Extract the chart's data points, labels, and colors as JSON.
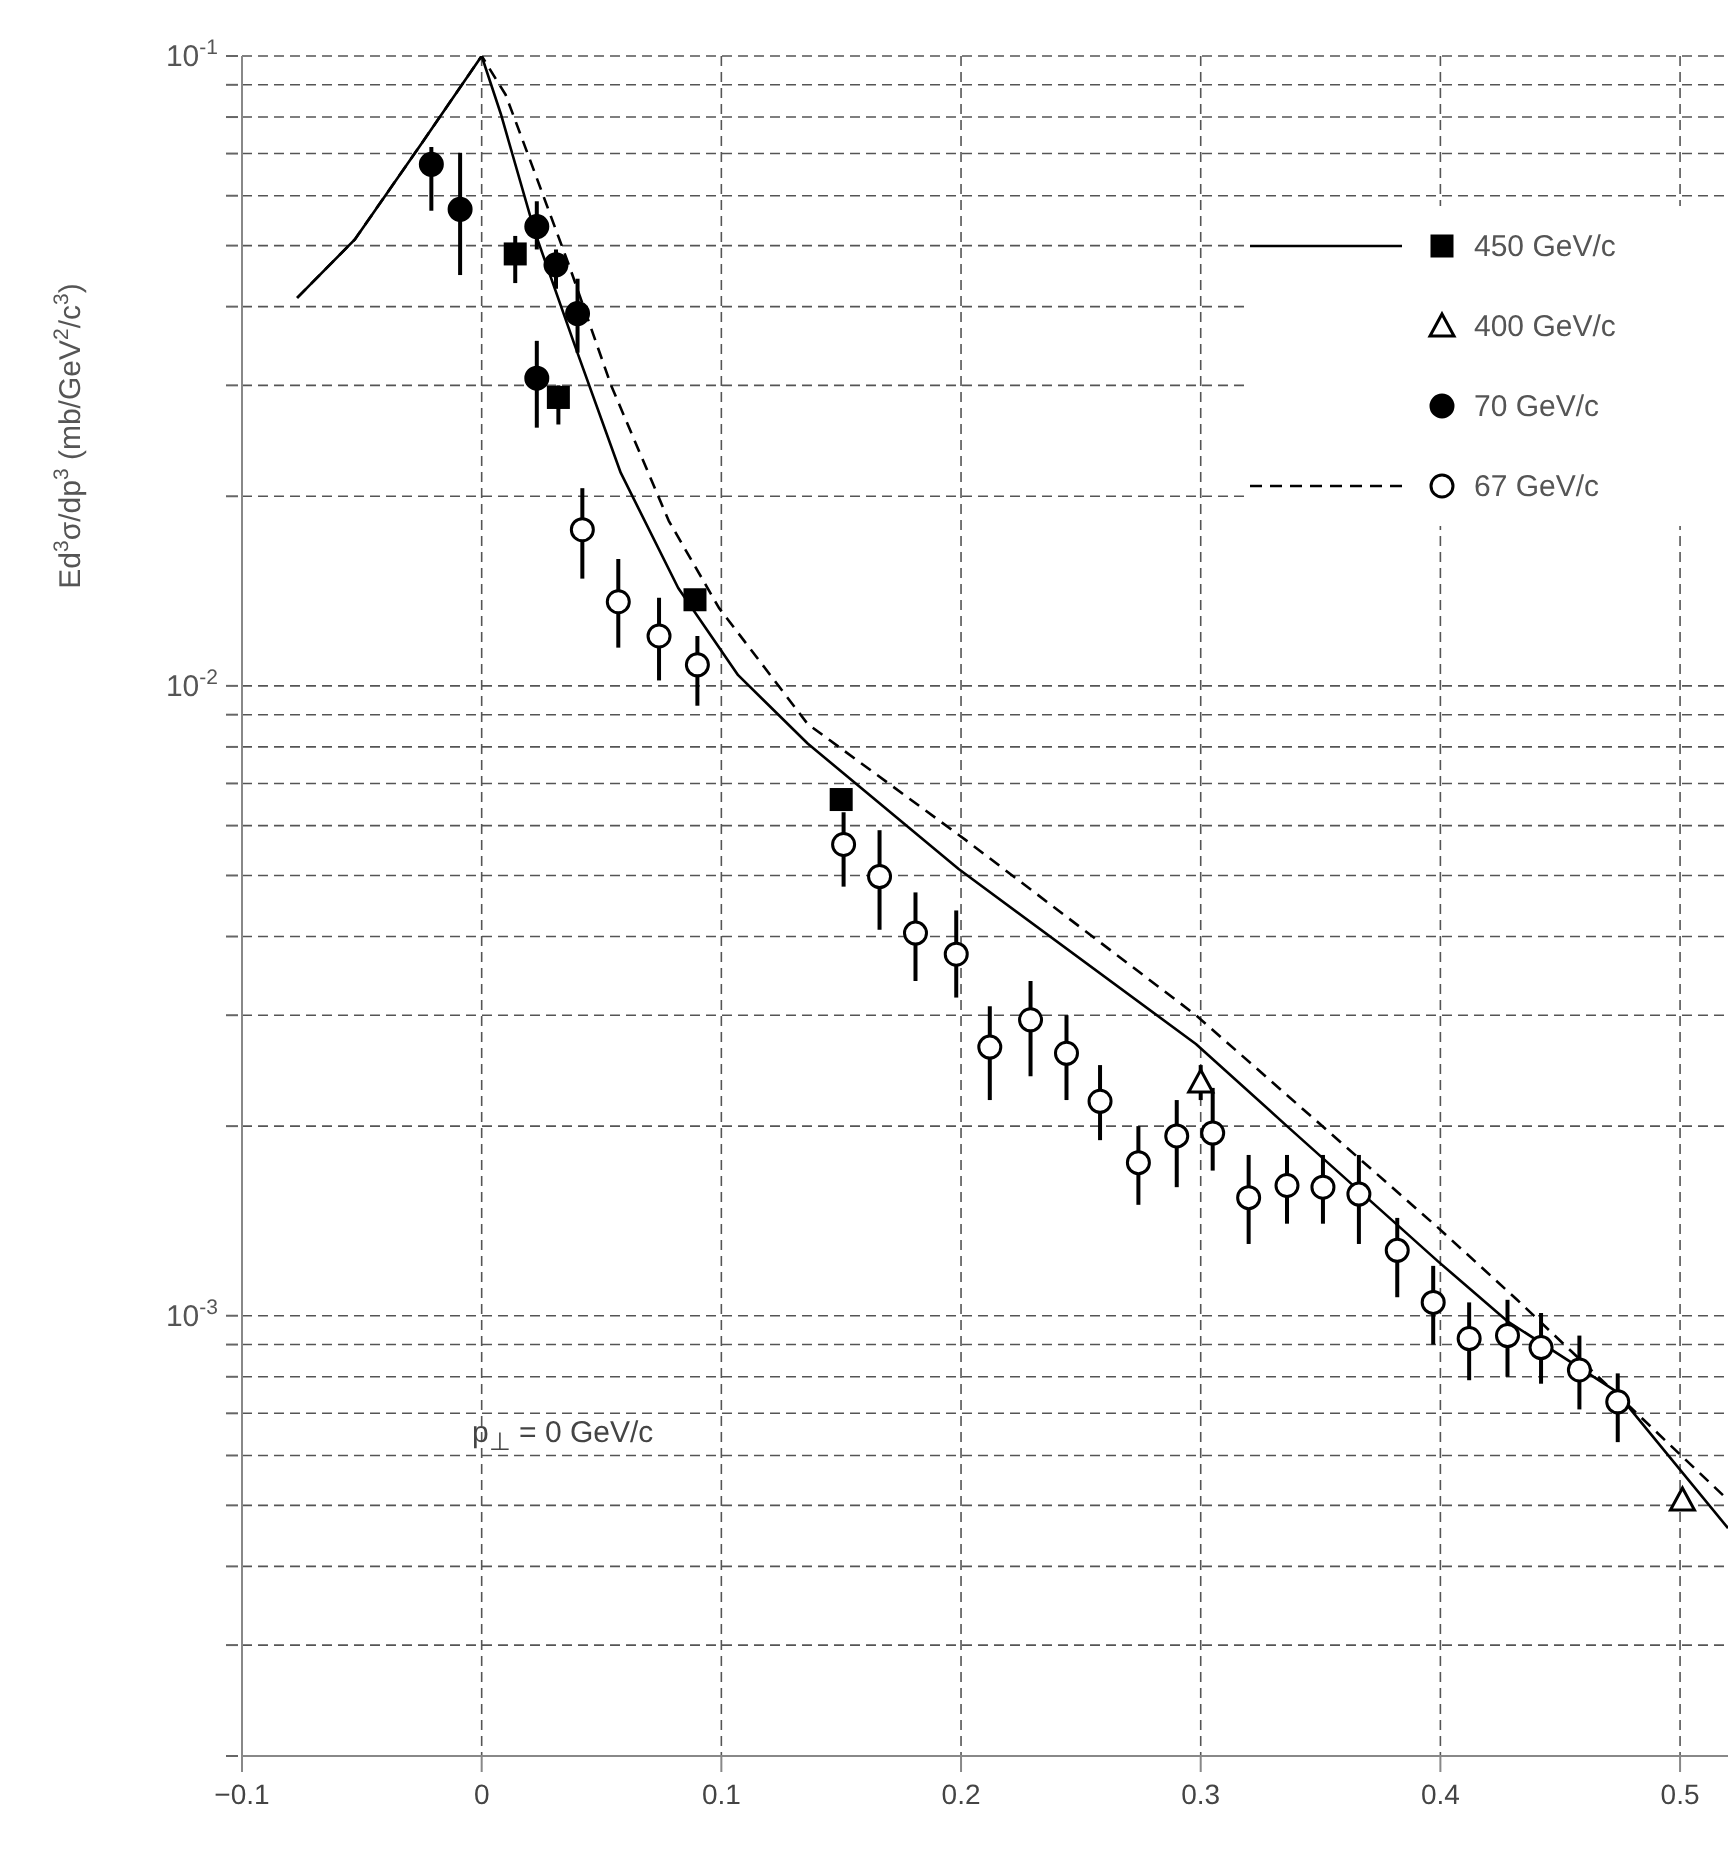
{
  "chart_data": {
    "type": "scatter",
    "ylabel": "Ed$^{3}$σ/dp$^{3}$ (mb/GeV$^{2}$/c$^{3}$)",
    "annotations": [
      "p$_{⊥}$ = 0 GeV/c"
    ],
    "log": "y",
    "grid": true,
    "legend": "top right",
    "xlim": [
      -0.1,
      0.52
    ],
    "xticks": [
      -0.1,
      0,
      0.1,
      0.2,
      0.3,
      0.4,
      0.5
    ],
    "ylim": [
      0.0002,
      0.1
    ],
    "yticks": [
      {
        "value": 0.0002,
        "label": null
      },
      {
        "value": 0.0003,
        "label": null
      },
      {
        "value": 0.0004,
        "label": null
      },
      {
        "value": 0.0005,
        "label": null
      },
      {
        "value": 0.0006,
        "label": null
      },
      {
        "value": 0.0007,
        "label": null
      },
      {
        "value": 0.0008,
        "label": null
      },
      {
        "value": 0.0009,
        "label": null
      },
      {
        "value": 0.001,
        "label": "10$^{-3}$"
      },
      {
        "value": 0.002,
        "label": null
      },
      {
        "value": 0.003,
        "label": null
      },
      {
        "value": 0.004,
        "label": null
      },
      {
        "value": 0.005,
        "label": null
      },
      {
        "value": 0.006,
        "label": null
      },
      {
        "value": 0.007,
        "label": null
      },
      {
        "value": 0.008,
        "label": null
      },
      {
        "value": 0.009,
        "label": null
      },
      {
        "value": 0.01,
        "label": "10$^{-2}$"
      },
      {
        "value": 0.02,
        "label": null
      },
      {
        "value": 0.03,
        "label": null
      },
      {
        "value": 0.04,
        "label": null
      },
      {
        "value": 0.05,
        "label": null
      },
      {
        "value": 0.06,
        "label": null
      },
      {
        "value": 0.07,
        "label": null
      },
      {
        "value": 0.08,
        "label": null
      },
      {
        "value": 0.09,
        "label": null
      },
      {
        "value": 0.1,
        "label": "10$^{-1}$"
      }
    ],
    "series": [
      {
        "type": "line",
        "color": "#000000",
        "marker": "none",
        "line_style": "solid",
        "x": [
          -0.077,
          -0.053,
          -0.025,
          0,
          0.008,
          0.022,
          0.039,
          0.058,
          0.082,
          0.107,
          0.136,
          0.199,
          0.298,
          0.336,
          0.399,
          0.428,
          0.473,
          0.52
        ],
        "values": [
          0.0413,
          0.0511,
          0.0727,
          0.1,
          0.0809,
          0.0528,
          0.0346,
          0.0218,
          0.0143,
          0.0104,
          0.0081,
          0.00512,
          0.0027,
          0.002,
          0.00122,
          0.00098,
          0.00076,
          0.00046
        ]
      },
      {
        "type": "line",
        "color": "#000000",
        "marker": "none",
        "line_style": "dashed",
        "x": [
          -0.077,
          -0.053,
          -0.025,
          0,
          0.01,
          0.022,
          0.037,
          0.054,
          0.078,
          0.099,
          0.136,
          0.202,
          0.298,
          0.399,
          0.432,
          0.52
        ],
        "values": [
          0.0413,
          0.0511,
          0.0727,
          0.1,
          0.0868,
          0.0655,
          0.0459,
          0.03,
          0.0183,
          0.0133,
          0.0087,
          0.00569,
          0.003,
          0.00138,
          0.00106,
          0.00051
        ]
      },
      {
        "name": "450 GeV/c",
        "color": "#000000",
        "marker": "square",
        "x": [
          0.014,
          0.032,
          0.089,
          0.15
        ],
        "values": [
          0.0485,
          0.0287,
          0.0137,
          0.0066
        ],
        "errors": [
          [
            0.0436,
            0.0518
          ],
          [
            0.026,
            0.03
          ],
          null,
          null
        ]
      },
      {
        "name": "400 GeV/c",
        "color": "#000000",
        "marker": "triangle-open",
        "x": [
          0.3,
          0.501
        ],
        "values": [
          0.00235,
          0.00051
        ],
        "errors": [
          [
            0.0022,
            0.0025
          ],
          null
        ]
      },
      {
        "name": "70 GeV/c",
        "color": "#000000",
        "marker": "circle",
        "x": [
          -0.021,
          -0.009,
          0.023,
          0.031,
          0.04,
          0.023
        ],
        "values": [
          0.0673,
          0.0571,
          0.0536,
          0.0466,
          0.039,
          0.0308
        ],
        "errors": [
          [
            0.0568,
            0.0717
          ],
          [
            0.0449,
            0.0702
          ],
          [
            0.0493,
            0.0588
          ],
          [
            0.0427,
            0.0493
          ],
          [
            0.0338,
            0.0443
          ],
          [
            0.0257,
            0.0353
          ]
        ]
      },
      {
        "name": "67 GeV/c",
        "color": "#000000",
        "marker": "circle-open",
        "x": [
          0.042,
          0.057,
          0.074,
          0.09,
          0.151,
          0.166,
          0.181,
          0.198,
          0.212,
          0.229,
          0.244,
          0.258,
          0.274,
          0.29,
          0.305,
          0.32,
          0.336,
          0.351,
          0.366,
          0.382,
          0.397,
          0.412,
          0.428,
          0.442,
          0.458,
          0.474
        ],
        "values": [
          0.0177,
          0.0136,
          0.012,
          0.0108,
          0.0056,
          0.00498,
          0.00405,
          0.00375,
          0.00267,
          0.00295,
          0.00261,
          0.00219,
          0.00175,
          0.00193,
          0.00195,
          0.00154,
          0.00161,
          0.0016,
          0.00156,
          0.00127,
          0.00105,
          0.00092,
          0.00093,
          0.00089,
          0.00082,
          0.00073
        ],
        "errors": [
          [
            0.0148,
            0.0206
          ],
          [
            0.0115,
            0.0159
          ],
          [
            0.0102,
            0.0138
          ],
          [
            0.0093,
            0.012
          ],
          [
            0.0048,
            0.0063
          ],
          [
            0.0041,
            0.0059
          ],
          [
            0.0034,
            0.0047
          ],
          [
            0.0032,
            0.0044
          ],
          [
            0.0022,
            0.0031
          ],
          [
            0.0024,
            0.0034
          ],
          [
            0.0022,
            0.003
          ],
          [
            0.0019,
            0.0025
          ],
          [
            0.0015,
            0.002
          ],
          [
            0.0016,
            0.0022
          ],
          [
            0.0017,
            0.0023
          ],
          [
            0.0013,
            0.0018
          ],
          [
            0.0014,
            0.0018
          ],
          [
            0.0014,
            0.0018
          ],
          [
            0.0013,
            0.0018
          ],
          [
            0.00107,
            0.00143
          ],
          [
            0.0009,
            0.0012
          ],
          [
            0.00079,
            0.00105
          ],
          [
            0.0008,
            0.00106
          ],
          [
            0.00078,
            0.00101
          ],
          [
            0.00071,
            0.00093
          ],
          [
            0.00063,
            0.00081
          ]
        ]
      }
    ]
  }
}
